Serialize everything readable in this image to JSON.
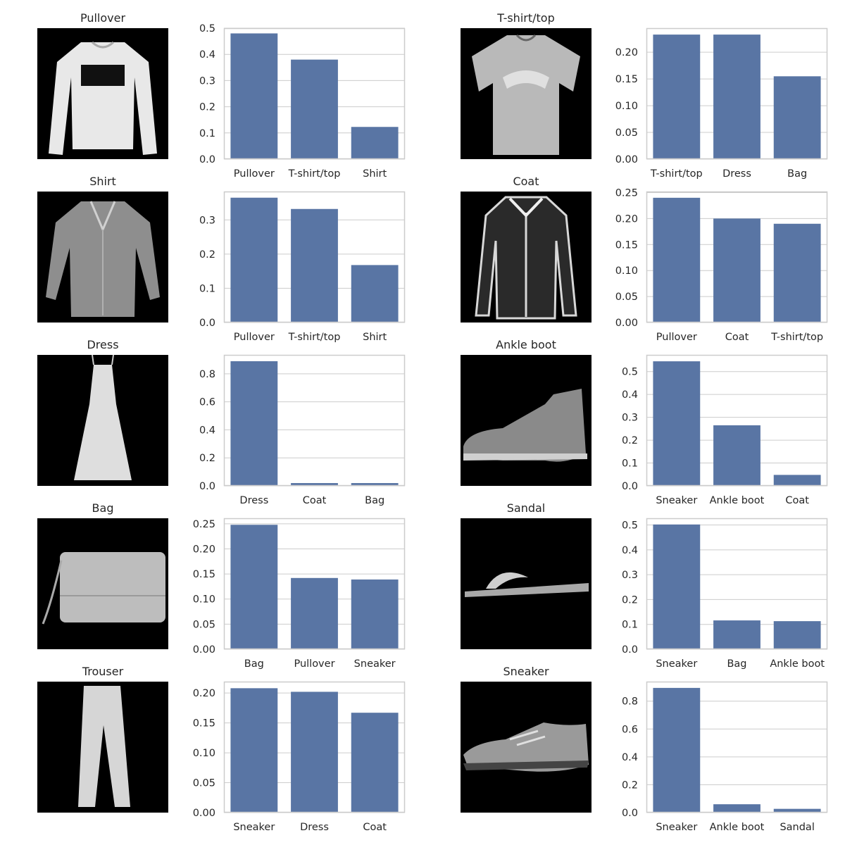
{
  "colors": {
    "bar": "#5975a4",
    "grid": "#cccccc",
    "axis_edge": "#cccccc",
    "image_bg": "#000000"
  },
  "panels": [
    {
      "title": "Pullover",
      "icon": "pullover-image",
      "chart_data": {
        "type": "bar",
        "categories": [
          "Pullover",
          "T-shirt/top",
          "Shirt"
        ],
        "values": [
          0.48,
          0.38,
          0.123
        ],
        "ylim": [
          0,
          0.5
        ],
        "yticks": [
          "0.0",
          "0.1",
          "0.2",
          "0.3",
          "0.4",
          "0.5"
        ],
        "grid": "horizontal"
      }
    },
    {
      "title": "T-shirt/top",
      "icon": "tshirt-image",
      "chart_data": {
        "type": "bar",
        "categories": [
          "T-shirt/top",
          "Dress",
          "Bag"
        ],
        "values": [
          0.233,
          0.233,
          0.155
        ],
        "ylim": [
          0,
          0.245
        ],
        "yticks": [
          "0.00",
          "0.05",
          "0.10",
          "0.15",
          "0.20"
        ],
        "grid": "horizontal"
      }
    },
    {
      "title": "Shirt",
      "icon": "shirt-image",
      "chart_data": {
        "type": "bar",
        "categories": [
          "Pullover",
          "T-shirt/top",
          "Shirt"
        ],
        "values": [
          0.365,
          0.332,
          0.168
        ],
        "ylim": [
          0,
          0.383
        ],
        "yticks": [
          "0.0",
          "0.1",
          "0.2",
          "0.3"
        ],
        "grid": "horizontal"
      }
    },
    {
      "title": "Coat",
      "icon": "coat-image",
      "chart_data": {
        "type": "bar",
        "categories": [
          "Pullover",
          "Coat",
          "T-shirt/top"
        ],
        "values": [
          0.24,
          0.2,
          0.19
        ],
        "ylim": [
          0,
          0.252
        ],
        "yticks": [
          "0.00",
          "0.05",
          "0.10",
          "0.15",
          "0.20",
          "0.25"
        ],
        "grid": "horizontal"
      }
    },
    {
      "title": "Dress",
      "icon": "dress-image",
      "chart_data": {
        "type": "bar",
        "categories": [
          "Dress",
          "Coat",
          "Bag"
        ],
        "values": [
          0.89,
          0.02,
          0.02
        ],
        "ylim": [
          0,
          0.935
        ],
        "yticks": [
          "0.0",
          "0.2",
          "0.4",
          "0.6",
          "0.8"
        ],
        "grid": "horizontal"
      }
    },
    {
      "title": "Ankle boot",
      "icon": "ankle-boot-image",
      "chart_data": {
        "type": "bar",
        "categories": [
          "Sneaker",
          "Ankle boot",
          "Coat"
        ],
        "values": [
          0.545,
          0.265,
          0.048
        ],
        "ylim": [
          0,
          0.573
        ],
        "yticks": [
          "0.0",
          "0.1",
          "0.2",
          "0.3",
          "0.4",
          "0.5"
        ],
        "grid": "horizontal"
      }
    },
    {
      "title": "Bag",
      "icon": "bag-image",
      "chart_data": {
        "type": "bar",
        "categories": [
          "Bag",
          "Pullover",
          "Sneaker"
        ],
        "values": [
          0.248,
          0.142,
          0.139
        ],
        "ylim": [
          0,
          0.261
        ],
        "yticks": [
          "0.00",
          "0.05",
          "0.10",
          "0.15",
          "0.20",
          "0.25"
        ],
        "grid": "horizontal"
      }
    },
    {
      "title": "Sandal",
      "icon": "sandal-image",
      "chart_data": {
        "type": "bar",
        "categories": [
          "Sneaker",
          "Bag",
          "Ankle boot"
        ],
        "values": [
          0.502,
          0.116,
          0.113
        ],
        "ylim": [
          0,
          0.527
        ],
        "yticks": [
          "0.0",
          "0.1",
          "0.2",
          "0.3",
          "0.4",
          "0.5"
        ],
        "grid": "horizontal"
      }
    },
    {
      "title": "Trouser",
      "icon": "trouser-image",
      "chart_data": {
        "type": "bar",
        "categories": [
          "Sneaker",
          "Dress",
          "Coat"
        ],
        "values": [
          0.208,
          0.202,
          0.167
        ],
        "ylim": [
          0,
          0.219
        ],
        "yticks": [
          "0.00",
          "0.05",
          "0.10",
          "0.15",
          "0.20"
        ],
        "grid": "horizontal"
      }
    },
    {
      "title": "Sneaker",
      "icon": "sneaker-image",
      "chart_data": {
        "type": "bar",
        "categories": [
          "Sneaker",
          "Ankle boot",
          "Sandal"
        ],
        "values": [
          0.895,
          0.06,
          0.027
        ],
        "ylim": [
          0,
          0.94
        ],
        "yticks": [
          "0.0",
          "0.2",
          "0.4",
          "0.6",
          "0.8"
        ],
        "grid": "horizontal"
      }
    }
  ]
}
